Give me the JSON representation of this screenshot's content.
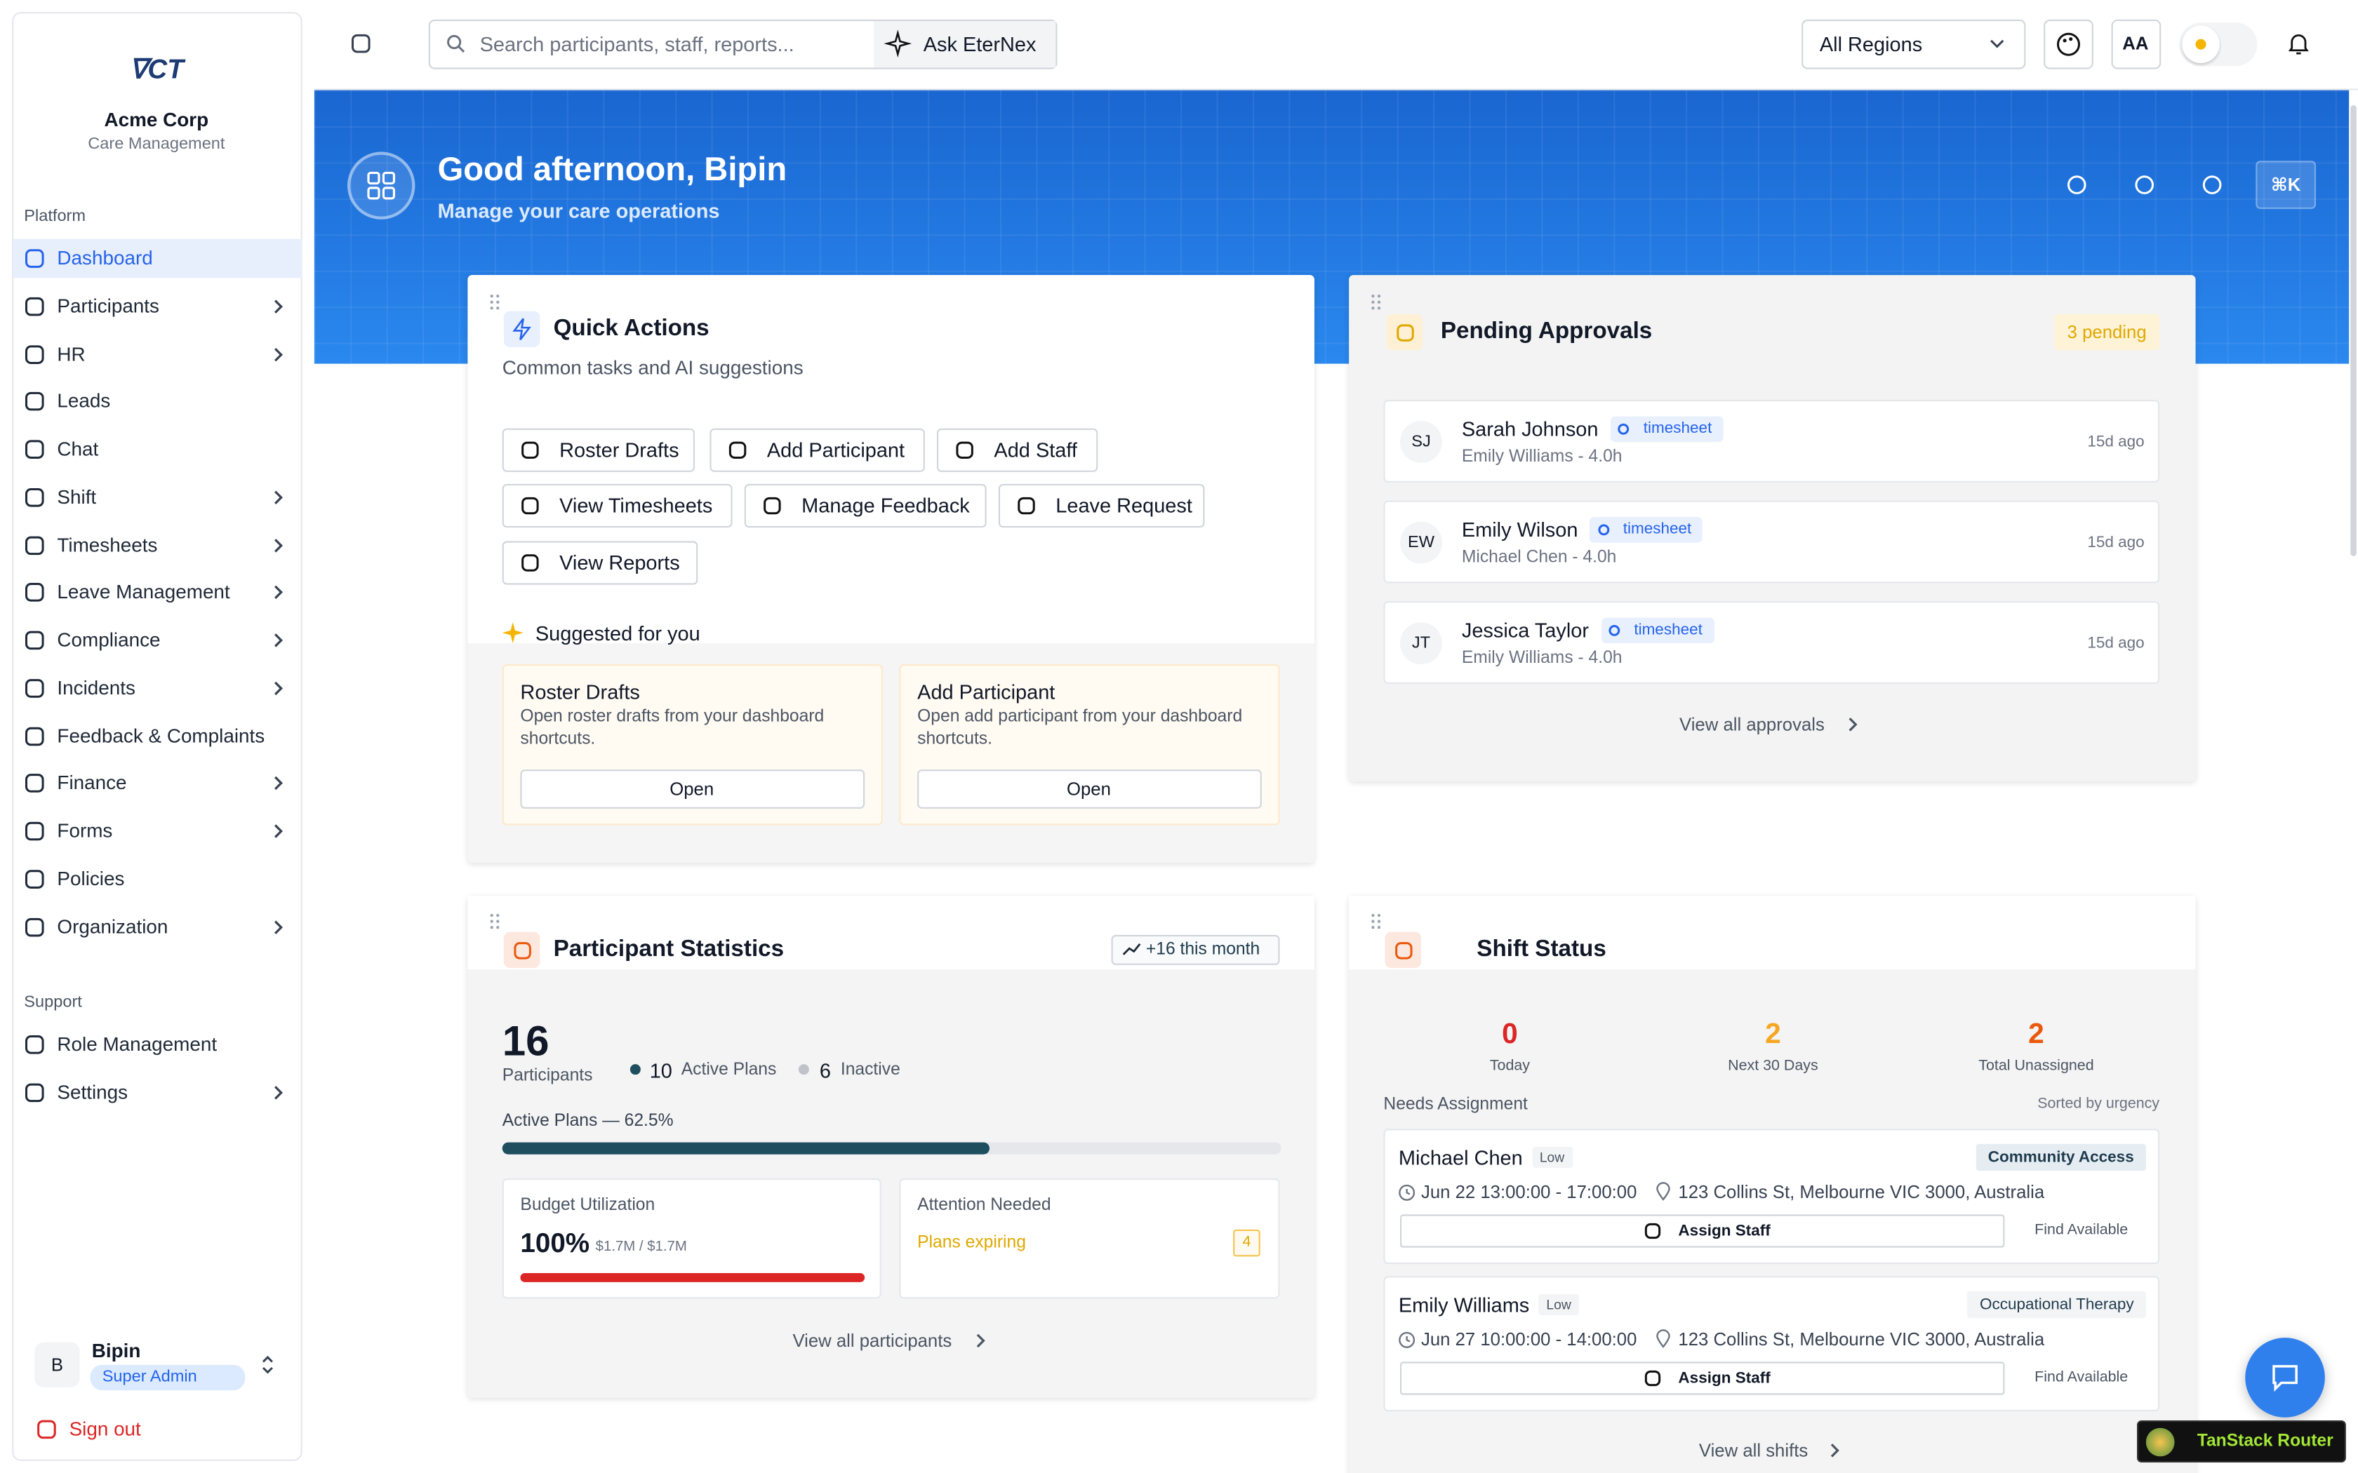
{
  "sidebar": {
    "org_name": "Acme Corp",
    "org_subtitle": "Care Management",
    "sections": [
      {
        "title": "Platform",
        "items": [
          {
            "label": "Dashboard",
            "active": true
          },
          {
            "label": "Participants",
            "expandable": true
          },
          {
            "label": "HR",
            "expandable": true
          },
          {
            "label": "Leads"
          },
          {
            "label": "Chat"
          },
          {
            "label": "Shift",
            "expandable": true
          },
          {
            "label": "Timesheets",
            "expandable": true
          },
          {
            "label": "Leave Management",
            "expandable": true
          },
          {
            "label": "Compliance",
            "expandable": true
          },
          {
            "label": "Incidents",
            "expandable": true
          },
          {
            "label": "Feedback & Complaints"
          },
          {
            "label": "Finance",
            "expandable": true
          },
          {
            "label": "Forms",
            "expandable": true
          },
          {
            "label": "Policies"
          },
          {
            "label": "Organization",
            "expandable": true
          }
        ]
      },
      {
        "title": "Support",
        "items": [
          {
            "label": "Role Management"
          },
          {
            "label": "Settings",
            "expandable": true
          }
        ]
      }
    ],
    "user": {
      "initial": "B",
      "name": "Bipin",
      "role": "Super Admin"
    },
    "sign_out": "Sign out"
  },
  "topbar": {
    "search_placeholder": "Search participants, staff, reports...",
    "ask_button": "Ask EterNex",
    "region": "All Regions",
    "text_size_button": "AA"
  },
  "hero": {
    "greeting": "Good afternoon, Bipin",
    "subtitle": "Manage your care operations",
    "shortcut": "⌘K"
  },
  "quick_actions": {
    "title": "Quick Actions",
    "subtitle": "Common tasks and AI suggestions",
    "actions": [
      "Roster Drafts",
      "Add Participant",
      "Add Staff",
      "View Timesheets",
      "Manage Feedback",
      "Leave Request",
      "View Reports"
    ],
    "suggested_title": "Suggested for you",
    "suggestions": [
      {
        "title": "Roster Drafts",
        "description": "Open roster drafts from your dashboard shortcuts.",
        "button": "Open"
      },
      {
        "title": "Add Participant",
        "description": "Open add participant from your dashboard shortcuts.",
        "button": "Open"
      }
    ]
  },
  "pending_approvals": {
    "title": "Pending Approvals",
    "badge": "3 pending",
    "items": [
      {
        "initials": "SJ",
        "name": "Sarah Johnson",
        "type": "timesheet",
        "detail": "Emily Williams - 4.0h",
        "age": "15d ago"
      },
      {
        "initials": "EW",
        "name": "Emily Wilson",
        "type": "timesheet",
        "detail": "Michael Chen - 4.0h",
        "age": "15d ago"
      },
      {
        "initials": "JT",
        "name": "Jessica Taylor",
        "type": "timesheet",
        "detail": "Emily Williams - 4.0h",
        "age": "15d ago"
      }
    ],
    "link": "View all approvals"
  },
  "participant_statistics": {
    "title": "Participant Statistics",
    "trend": "+16 this month",
    "total": 16,
    "total_label": "Participants",
    "active_count": 10,
    "active_label": "Active Plans",
    "inactive_count": 6,
    "inactive_label": "Inactive",
    "progress_label": "Active Plans — 62.5%",
    "progress_percent": 62.5,
    "budget_title": "Budget Utilization",
    "budget_value": "100%",
    "budget_percent": 100,
    "budget_amount": "$1.7M / $1.7M",
    "attention_title": "Attention Needed",
    "attention_item": "Plans expiring",
    "attention_count": 4,
    "link": "View all participants"
  },
  "shift_status": {
    "title": "Shift Status",
    "stats": [
      {
        "value": 0,
        "label": "Today",
        "color": "#dc2626"
      },
      {
        "value": 2,
        "label": "Next 30 Days",
        "color": "#f5a623"
      },
      {
        "value": 2,
        "label": "Total Unassigned",
        "color": "#ea580c"
      }
    ],
    "needs_label": "Needs Assignment",
    "sort_label": "Sorted by urgency",
    "shifts": [
      {
        "name": "Michael Chen",
        "priority": "Low",
        "service": "Community Access",
        "time": "Jun 22 13:00:00 - 17:00:00",
        "address": "123 Collins St, Melbourne VIC 3000, Australia",
        "assign": "Assign Staff",
        "find": "Find Available"
      },
      {
        "name": "Emily Williams",
        "priority": "Low",
        "service": "Occupational Therapy",
        "time": "Jun 27 10:00:00 - 14:00:00",
        "address": "123 Collins St, Melbourne VIC 3000, Australia",
        "assign": "Assign Staff",
        "find": "Find Available"
      }
    ],
    "link": "View all shifts"
  },
  "footer": {
    "router_badge": "TanStack Router"
  }
}
